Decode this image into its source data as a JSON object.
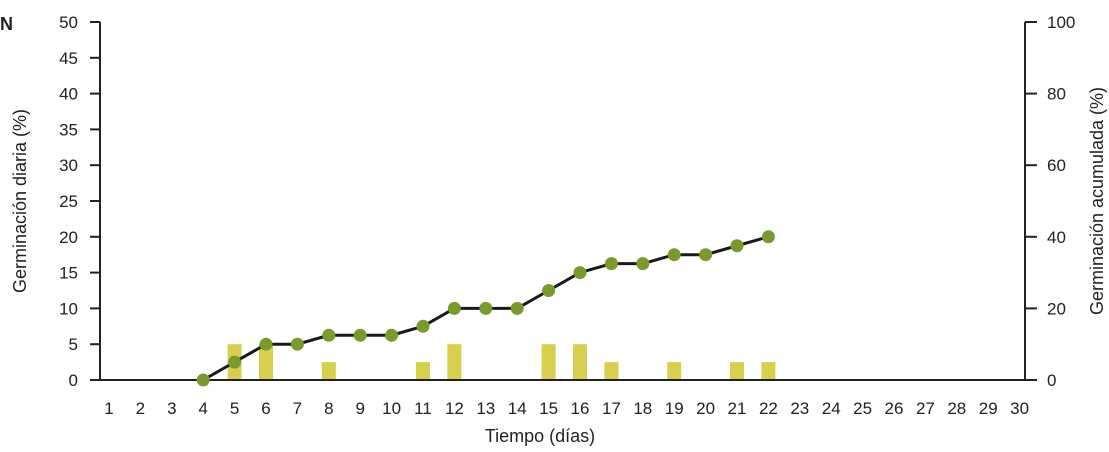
{
  "panel_label": "N",
  "chart_data": {
    "type": "bar+line",
    "title": "",
    "xlabel": "Tiempo (días)",
    "ylabel_left": "Germinación diaria (%)",
    "ylabel_right": "Germinación acumulada (%)",
    "x": [
      1,
      2,
      3,
      4,
      5,
      6,
      7,
      8,
      9,
      10,
      11,
      12,
      13,
      14,
      15,
      16,
      17,
      18,
      19,
      20,
      21,
      22,
      23,
      24,
      25,
      26,
      27,
      28,
      29,
      30
    ],
    "ylim_left": [
      0,
      50
    ],
    "yticks_left": [
      0,
      5,
      10,
      15,
      20,
      25,
      30,
      35,
      40,
      45,
      50
    ],
    "ylim_right": [
      0,
      100
    ],
    "yticks_right": [
      0,
      20,
      40,
      60,
      80,
      100
    ],
    "grid": false,
    "legend": "none",
    "bar_series": {
      "axis": "left",
      "color": "#d9cf4e",
      "points": [
        {
          "x": 5,
          "y": 5
        },
        {
          "x": 6,
          "y": 5
        },
        {
          "x": 8,
          "y": 2.5
        },
        {
          "x": 11,
          "y": 2.5
        },
        {
          "x": 12,
          "y": 5
        },
        {
          "x": 15,
          "y": 5
        },
        {
          "x": 16,
          "y": 5
        },
        {
          "x": 17,
          "y": 2.5
        },
        {
          "x": 19,
          "y": 2.5
        },
        {
          "x": 21,
          "y": 2.5
        },
        {
          "x": 22,
          "y": 2.5
        }
      ]
    },
    "line_series": {
      "axis": "right",
      "line_color": "#1a1a1a",
      "marker_color": "#7a9a2e",
      "points": [
        {
          "x": 4,
          "y": 0
        },
        {
          "x": 5,
          "y": 5
        },
        {
          "x": 6,
          "y": 10
        },
        {
          "x": 7,
          "y": 10
        },
        {
          "x": 8,
          "y": 12.5
        },
        {
          "x": 9,
          "y": 12.5
        },
        {
          "x": 10,
          "y": 12.5
        },
        {
          "x": 11,
          "y": 15
        },
        {
          "x": 12,
          "y": 20
        },
        {
          "x": 13,
          "y": 20
        },
        {
          "x": 14,
          "y": 20
        },
        {
          "x": 15,
          "y": 25
        },
        {
          "x": 16,
          "y": 30
        },
        {
          "x": 17,
          "y": 32.5
        },
        {
          "x": 18,
          "y": 32.5
        },
        {
          "x": 19,
          "y": 35
        },
        {
          "x": 20,
          "y": 35
        },
        {
          "x": 21,
          "y": 37.5
        },
        {
          "x": 22,
          "y": 40
        }
      ]
    }
  }
}
